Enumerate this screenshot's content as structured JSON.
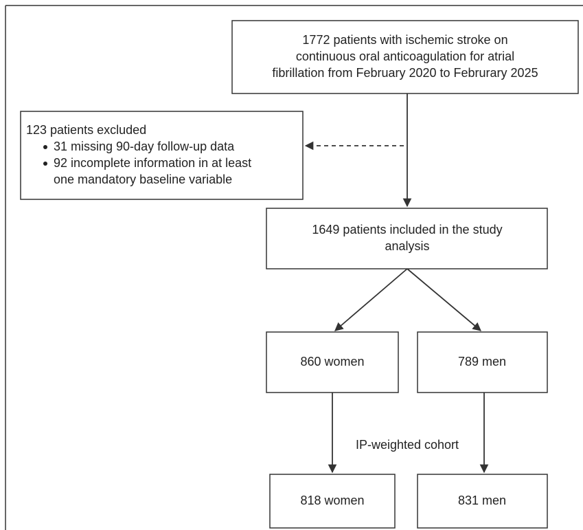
{
  "nodes": [
    {
      "lines": [
        "1772 patients with ischemic stroke on",
        "continuous oral anticoagulation for atrial",
        "fibrillation from February 2020 to Februrary 2025"
      ]
    },
    {
      "title": "123 patients excluded",
      "items": [
        "31 missing 90-day follow-up data",
        "92 incomplete information in at least",
        "one mandatory baseline variable"
      ]
    },
    {
      "lines": [
        "1649 patients included in the study",
        "analysis"
      ]
    },
    {
      "lines": [
        "860 women"
      ]
    },
    {
      "lines": [
        "789 men"
      ]
    },
    {
      "lines": [
        "818 women"
      ]
    },
    {
      "lines": [
        "831 men"
      ]
    }
  ],
  "edge_label": "IP-weighted cohort"
}
